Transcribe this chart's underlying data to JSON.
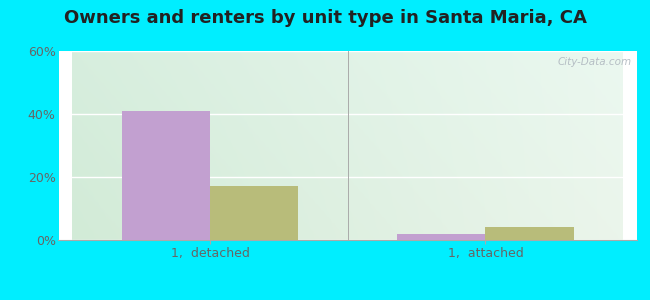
{
  "title": "Owners and renters by unit type in Santa Maria, CA",
  "categories": [
    "1,  detached",
    "1,  attached"
  ],
  "owner_values": [
    41.0,
    2.0
  ],
  "renter_values": [
    17.0,
    4.0
  ],
  "owner_color": "#c2a0d0",
  "renter_color": "#b8bc7a",
  "ylim": [
    0,
    60
  ],
  "yticks": [
    0,
    20,
    40,
    60
  ],
  "ytick_labels": [
    "0%",
    "20%",
    "40%",
    "60%"
  ],
  "outer_bg": "#00eeff",
  "watermark": "City-Data.com",
  "bar_width": 0.32,
  "title_fontsize": 13,
  "tick_fontsize": 9,
  "legend_fontsize": 9,
  "grad_top_left": "#c8e8d0",
  "grad_top_right": "#e8f5f0",
  "grad_bottom_left": "#dff0d8",
  "grad_bottom_right": "#f5fff5"
}
